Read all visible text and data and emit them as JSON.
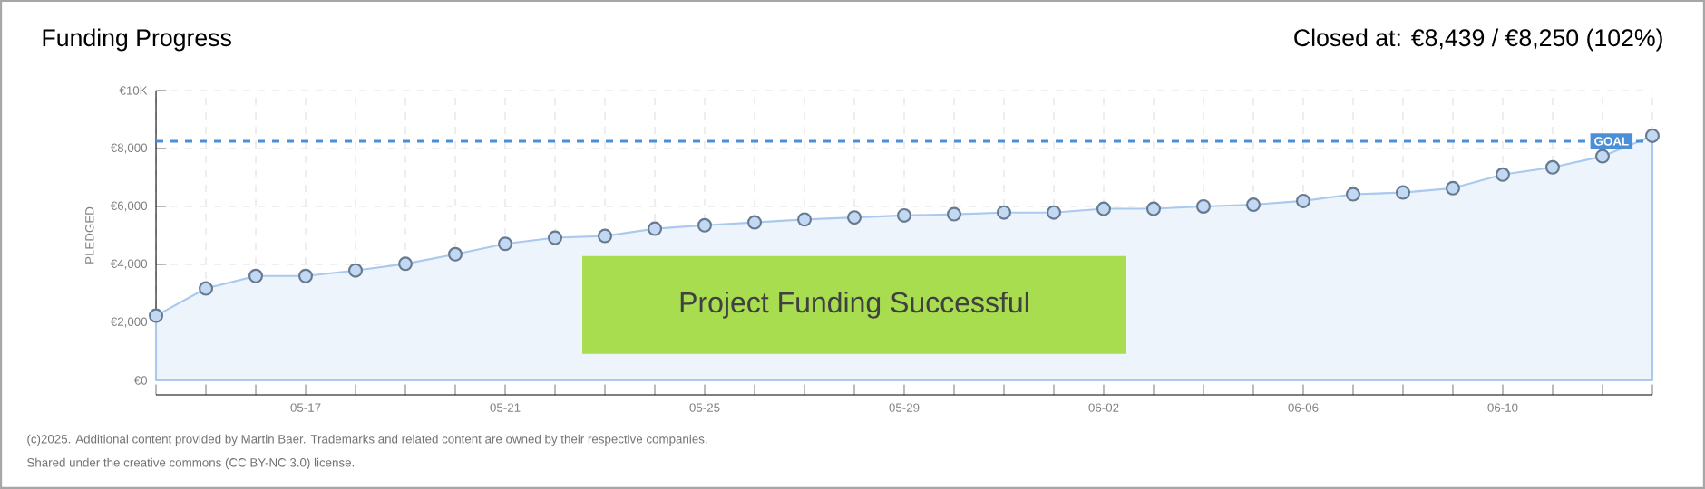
{
  "chart_data": {
    "type": "area",
    "title": "Funding Progress",
    "ylabel": "PLEDGED",
    "categories": [
      null,
      null,
      null,
      "05-17",
      null,
      null,
      null,
      "05-21",
      null,
      null,
      null,
      "05-25",
      null,
      null,
      null,
      "05-29",
      null,
      null,
      null,
      "06-02",
      null,
      null,
      null,
      "06-06",
      null,
      null,
      null,
      "06-10",
      null,
      null,
      null
    ],
    "values": [
      2230,
      3170,
      3600,
      3600,
      3790,
      4020,
      4350,
      4710,
      4920,
      4980,
      5230,
      5350,
      5450,
      5550,
      5620,
      5690,
      5730,
      5790,
      5790,
      5920,
      5920,
      6000,
      6060,
      6190,
      6420,
      6480,
      6630,
      7100,
      7350,
      7730,
      8439
    ],
    "color": "#a9c9ee",
    "marker": "circle",
    "grid": true,
    "ylim": [
      0,
      10000
    ],
    "yticks": [
      {
        "value": 0,
        "label": "€0"
      },
      {
        "value": 2000,
        "label": "€2,000"
      },
      {
        "value": 4000,
        "label": "€4,000"
      },
      {
        "value": 6000,
        "label": "€6,000"
      },
      {
        "value": 8000,
        "label": "€8,000"
      },
      {
        "value": 10000,
        "label": "€10K"
      }
    ],
    "ref_lines": [
      {
        "axis": "y",
        "value": 8250,
        "label": "GOAL",
        "color": "#4a8fd8",
        "line_style": "dashed"
      }
    ],
    "annotations": [
      "Closed at:  €8,439 / €8,250 (102%)",
      "Project Funding Successful",
      "(c)2025. Additional content provided by Martin Baer. Trademarks and related content are owned by their respective companies.",
      "Shared under the creative commons (CC BY-NC 3.0) license."
    ]
  }
}
